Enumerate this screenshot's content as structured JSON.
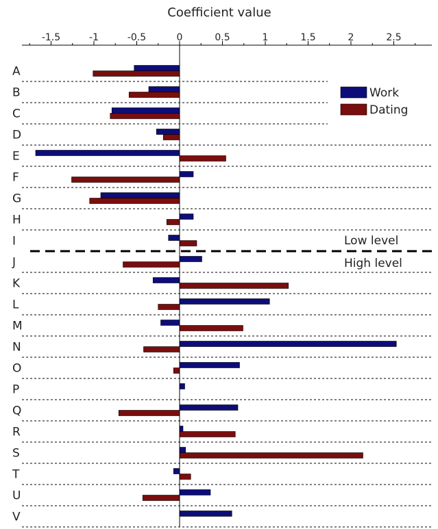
{
  "chart_data": {
    "type": "bar",
    "orientation": "horizontal",
    "title": "",
    "xlabel": "Coefficient value",
    "ylabel": "",
    "xlim": [
      -1.75,
      2.75
    ],
    "x_ticks": [
      {
        "value": -1.5,
        "label": "-1.5"
      },
      {
        "value": -1.0,
        "label": "-1"
      },
      {
        "value": -0.5,
        "label": "-0.5"
      },
      {
        "value": 0.0,
        "label": "0"
      },
      {
        "value": 0.5,
        "label": "0.5"
      },
      {
        "value": 1.0,
        "label": "1"
      },
      {
        "value": 1.5,
        "label": "1.5"
      },
      {
        "value": 2.0,
        "label": "2"
      },
      {
        "value": 2.5,
        "label": "2.5"
      }
    ],
    "categories": [
      "A",
      "B",
      "C",
      "D",
      "E",
      "F",
      "G",
      "H",
      "I",
      "J",
      "K",
      "L",
      "M",
      "N",
      "O",
      "P",
      "Q",
      "R",
      "S",
      "T",
      "U",
      "V"
    ],
    "series": [
      {
        "name": "Work",
        "color": "#0d0d7a",
        "values": [
          -0.53,
          -0.36,
          -0.79,
          -0.27,
          -1.68,
          0.16,
          -0.92,
          0.16,
          -0.13,
          0.26,
          -0.31,
          1.05,
          -0.22,
          2.53,
          0.7,
          0.06,
          0.68,
          0.04,
          0.07,
          -0.07,
          0.36,
          0.61
        ]
      },
      {
        "name": "Dating",
        "color": "#7a0d0d",
        "values": [
          -1.01,
          -0.59,
          -0.81,
          -0.19,
          0.54,
          -1.26,
          -1.05,
          -0.15,
          0.2,
          -0.66,
          1.27,
          -0.25,
          0.74,
          -0.42,
          -0.07,
          0.0,
          -0.71,
          0.65,
          2.14,
          0.13,
          -0.43,
          0.0
        ]
      }
    ],
    "divider_after": "I",
    "annotations": {
      "above": "Low level",
      "below": "High level"
    },
    "legend": {
      "placement": "top-right"
    },
    "grid": "horizontal dashed separators"
  }
}
